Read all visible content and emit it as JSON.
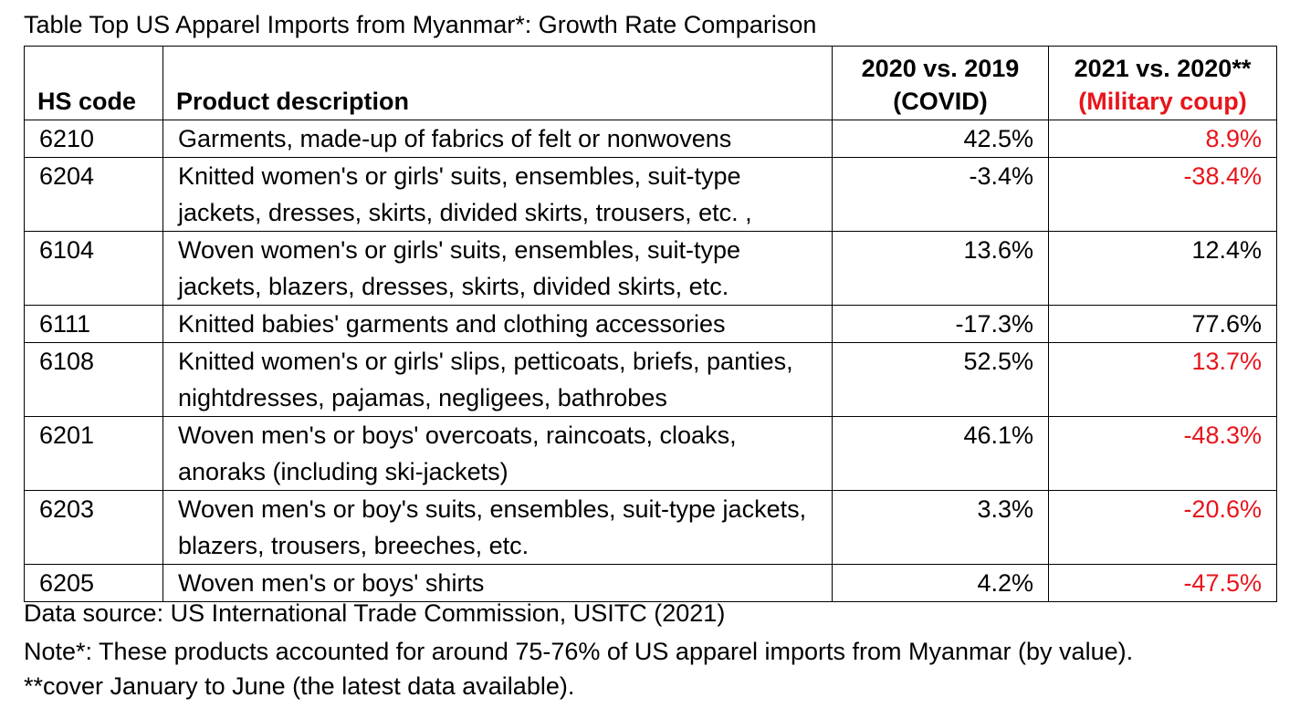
{
  "caption": "Table Top US Apparel Imports from Myanmar*: Growth Rate Comparison",
  "table": {
    "headers": {
      "hs_code": "HS code",
      "product_description": "Product description",
      "col_2020_line1": "2020 vs. 2019",
      "col_2020_line2": "(COVID)",
      "col_2021_line1": "2021 vs. 2020**",
      "col_2021_line2": "(Military coup)"
    },
    "rows": [
      {
        "hs_code": "6210",
        "description": "Garments, made-up of fabrics of felt or nonwovens",
        "growth_2020_vs_2019": "42.5%",
        "growth_2021_vs_2020": "8.9%",
        "growth_2021_highlighted": true
      },
      {
        "hs_code": "6204",
        "description": "Knitted women's or girls' suits, ensembles, suit-type jackets, dresses, skirts, divided skirts, trousers, etc. ,",
        "growth_2020_vs_2019": "-3.4%",
        "growth_2021_vs_2020": "-38.4%",
        "growth_2021_highlighted": true
      },
      {
        "hs_code": "6104",
        "description": "Woven women's or girls' suits, ensembles, suit-type jackets, blazers, dresses, skirts, divided skirts, etc.",
        "growth_2020_vs_2019": "13.6%",
        "growth_2021_vs_2020": "12.4%",
        "growth_2021_highlighted": false
      },
      {
        "hs_code": "6111",
        "description": "Knitted babies' garments and clothing accessories",
        "growth_2020_vs_2019": "-17.3%",
        "growth_2021_vs_2020": "77.6%",
        "growth_2021_highlighted": false
      },
      {
        "hs_code": "6108",
        "description": "Knitted women's or girls' slips, petticoats, briefs, panties, nightdresses, pajamas, negligees, bathrobes",
        "growth_2020_vs_2019": "52.5%",
        "growth_2021_vs_2020": "13.7%",
        "growth_2021_highlighted": true
      },
      {
        "hs_code": "6201",
        "description": "Woven men's or boys' overcoats, raincoats, cloaks, anoraks (including ski-jackets)",
        "growth_2020_vs_2019": "46.1%",
        "growth_2021_vs_2020": "-48.3%",
        "growth_2021_highlighted": true
      },
      {
        "hs_code": "6203",
        "description": "Woven men's or boy's suits, ensembles, suit-type jackets, blazers, trousers, breeches, etc.",
        "growth_2020_vs_2019": "3.3%",
        "growth_2021_vs_2020": "-20.6%",
        "growth_2021_highlighted": true
      },
      {
        "hs_code": "6205",
        "description": "Woven men's or boys' shirts",
        "growth_2020_vs_2019": "4.2%",
        "growth_2021_vs_2020": "-47.5%",
        "growth_2021_highlighted": true
      }
    ]
  },
  "footer": {
    "source": "Data source: US International Trade Commission, USITC (2021)",
    "note": "Note*: These products accounted for around 75-76% of US apparel imports from Myanmar (by value).",
    "note2": "**cover January to June (the latest data available)."
  },
  "colors": {
    "text": "#000000",
    "highlight_red": "#e8141b",
    "border": "#000000",
    "background": "#ffffff"
  }
}
